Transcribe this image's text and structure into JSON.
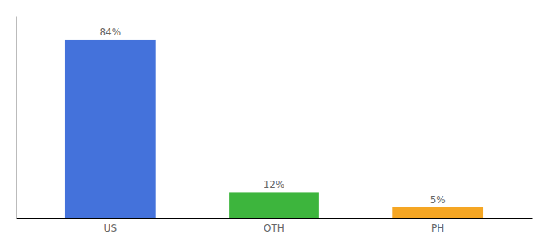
{
  "chart_data": {
    "type": "bar",
    "categories": [
      "US",
      "OTH",
      "PH"
    ],
    "values": [
      84,
      12,
      5
    ],
    "value_labels": [
      "84%",
      "12%",
      "5%"
    ],
    "colors": [
      "#4472db",
      "#3db53d",
      "#f5a623"
    ],
    "ylim": [
      0,
      95
    ],
    "data_labels": true,
    "tick_labels": "x"
  }
}
